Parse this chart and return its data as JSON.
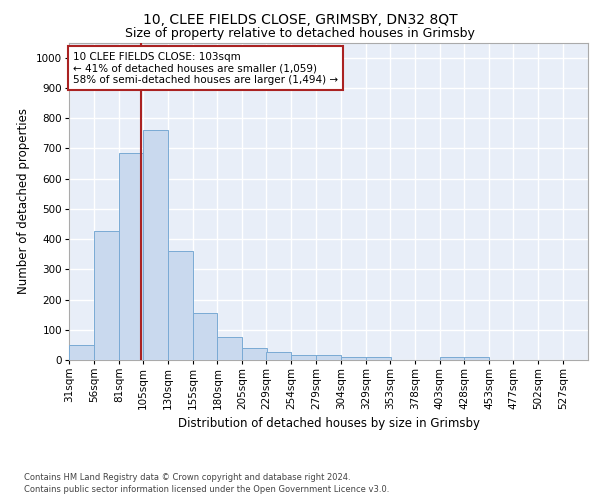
{
  "title1": "10, CLEE FIELDS CLOSE, GRIMSBY, DN32 8QT",
  "title2": "Size of property relative to detached houses in Grimsby",
  "xlabel": "Distribution of detached houses by size in Grimsby",
  "ylabel": "Number of detached properties",
  "bins": [
    "31sqm",
    "56sqm",
    "81sqm",
    "105sqm",
    "130sqm",
    "155sqm",
    "180sqm",
    "205sqm",
    "229sqm",
    "254sqm",
    "279sqm",
    "304sqm",
    "329sqm",
    "353sqm",
    "378sqm",
    "403sqm",
    "428sqm",
    "453sqm",
    "477sqm",
    "502sqm",
    "527sqm"
  ],
  "bin_edges": [
    31,
    56,
    81,
    105,
    130,
    155,
    180,
    205,
    229,
    254,
    279,
    304,
    329,
    353,
    378,
    403,
    428,
    453,
    477,
    502,
    527
  ],
  "values": [
    50,
    425,
    685,
    760,
    360,
    155,
    75,
    40,
    28,
    18,
    18,
    10,
    10,
    0,
    0,
    10,
    10,
    0,
    0,
    0,
    0
  ],
  "bar_color": "#c9d9ee",
  "bar_edge_color": "#7aaad4",
  "vline_color": "#aa2222",
  "vline_x": 103,
  "annotation_text": "10 CLEE FIELDS CLOSE: 103sqm\n← 41% of detached houses are smaller (1,059)\n58% of semi-detached houses are larger (1,494) →",
  "annotation_box_color": "#aa2222",
  "ylim": [
    0,
    1050
  ],
  "yticks": [
    0,
    100,
    200,
    300,
    400,
    500,
    600,
    700,
    800,
    900,
    1000
  ],
  "footer_line1": "Contains HM Land Registry data © Crown copyright and database right 2024.",
  "footer_line2": "Contains public sector information licensed under the Open Government Licence v3.0.",
  "bg_color": "#e8eef8",
  "grid_color": "#ffffff",
  "title1_fontsize": 10,
  "title2_fontsize": 9,
  "xlabel_fontsize": 8.5,
  "ylabel_fontsize": 8.5,
  "tick_fontsize": 7.5,
  "annotation_fontsize": 7.5,
  "footer_fontsize": 6.0
}
